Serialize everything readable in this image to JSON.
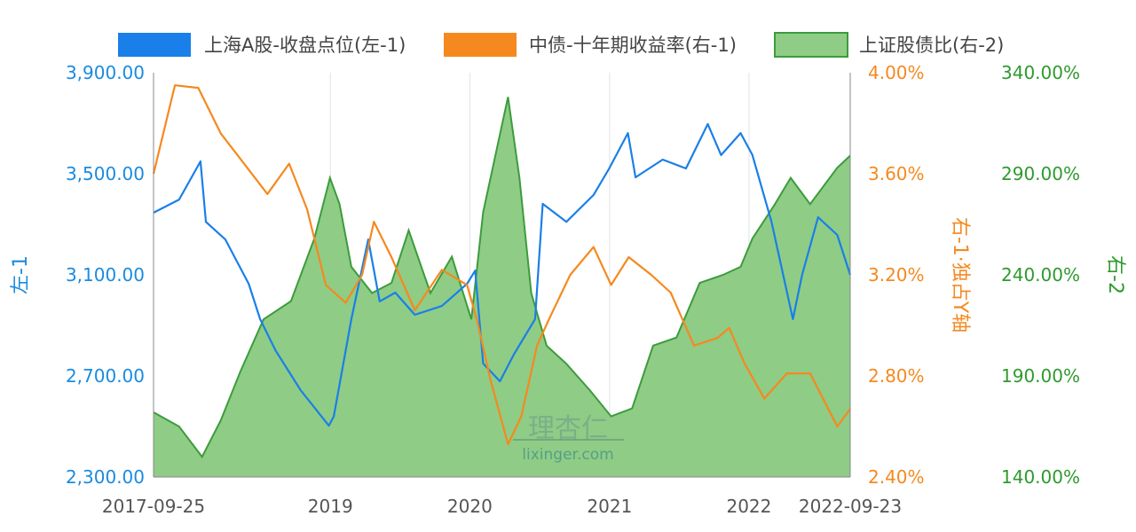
{
  "chart_data": {
    "type": "line",
    "legend": {
      "placement": "top"
    },
    "grid": {
      "vertical": true,
      "horizontal": false
    },
    "watermark": {
      "logo_text": "理杏仁",
      "site": "lixinger.com"
    },
    "x_axis": {
      "type": "date",
      "range": [
        "2017-09-25",
        "2022-09-23"
      ],
      "tick_labels": [
        {
          "date": "2017-09-25",
          "label": "2017-09-25"
        },
        {
          "date": "2019-01-01",
          "label": "2019"
        },
        {
          "date": "2020-01-01",
          "label": "2020"
        },
        {
          "date": "2021-01-01",
          "label": "2021"
        },
        {
          "date": "2022-01-01",
          "label": "2022"
        },
        {
          "date": "2022-09-23",
          "label": "2022-09-23"
        }
      ]
    },
    "axes": {
      "left1": {
        "label": "左-1",
        "range": [
          2300,
          3900
        ],
        "ticks": [
          "2,300.00",
          "2,700.00",
          "3,100.00",
          "3,500.00",
          "3,900.00"
        ],
        "color": "#1a8be0"
      },
      "right1": {
        "label": "右-1·独占Y轴",
        "range": [
          2.4,
          4.0
        ],
        "ticks": [
          "2.40%",
          "2.80%",
          "3.20%",
          "3.60%",
          "4.00%"
        ],
        "color": "#f5891f"
      },
      "right2": {
        "label": "右-2",
        "range": [
          140,
          340
        ],
        "ticks": [
          "140.00%",
          "190.00%",
          "240.00%",
          "290.00%",
          "340.00%"
        ],
        "color": "#2e9a2e"
      }
    },
    "series": [
      {
        "name": "上海A股-收盘点位(左-1)",
        "axis": "left1",
        "kind": "line",
        "color": "#1a7fe8",
        "points": [
          [
            "2017-09-25",
            3346
          ],
          [
            "2017-12-01",
            3398
          ],
          [
            "2018-01-26",
            3549
          ],
          [
            "2018-02-09",
            3310
          ],
          [
            "2018-04-01",
            3240
          ],
          [
            "2018-06-01",
            3065
          ],
          [
            "2018-07-01",
            2925
          ],
          [
            "2018-08-10",
            2802
          ],
          [
            "2018-10-15",
            2644
          ],
          [
            "2018-12-28",
            2503
          ],
          [
            "2019-01-10",
            2540
          ],
          [
            "2019-02-25",
            2925
          ],
          [
            "2019-04-10",
            3240
          ],
          [
            "2019-05-10",
            2995
          ],
          [
            "2019-06-20",
            3030
          ],
          [
            "2019-08-10",
            2942
          ],
          [
            "2019-10-20",
            2977
          ],
          [
            "2019-12-25",
            3065
          ],
          [
            "2020-01-15",
            3117
          ],
          [
            "2020-02-05",
            2749
          ],
          [
            "2020-03-20",
            2679
          ],
          [
            "2020-04-25",
            2784
          ],
          [
            "2020-06-20",
            2925
          ],
          [
            "2020-07-10",
            3381
          ],
          [
            "2020-09-10",
            3310
          ],
          [
            "2020-11-20",
            3416
          ],
          [
            "2020-12-31",
            3521
          ],
          [
            "2021-02-18",
            3661
          ],
          [
            "2021-03-10",
            3486
          ],
          [
            "2021-05-20",
            3556
          ],
          [
            "2021-07-20",
            3521
          ],
          [
            "2021-09-15",
            3697
          ],
          [
            "2021-10-20",
            3574
          ],
          [
            "2021-12-10",
            3661
          ],
          [
            "2022-01-10",
            3574
          ],
          [
            "2022-03-01",
            3310
          ],
          [
            "2022-04-26",
            2925
          ],
          [
            "2022-05-20",
            3100
          ],
          [
            "2022-07-01",
            3328
          ],
          [
            "2022-08-20",
            3258
          ],
          [
            "2022-09-23",
            3100
          ]
        ]
      },
      {
        "name": "中债-十年期收益率(右-1)",
        "axis": "right1",
        "kind": "line",
        "color": "#f5891f",
        "points": [
          [
            "2017-09-25",
            3.6
          ],
          [
            "2017-11-20",
            3.95
          ],
          [
            "2018-01-20",
            3.94
          ],
          [
            "2018-03-20",
            3.76
          ],
          [
            "2018-05-20",
            3.64
          ],
          [
            "2018-07-20",
            3.52
          ],
          [
            "2018-09-15",
            3.64
          ],
          [
            "2018-11-01",
            3.46
          ],
          [
            "2018-12-20",
            3.16
          ],
          [
            "2019-02-10",
            3.09
          ],
          [
            "2019-03-25",
            3.2
          ],
          [
            "2019-04-25",
            3.41
          ],
          [
            "2019-06-10",
            3.27
          ],
          [
            "2019-08-10",
            3.06
          ],
          [
            "2019-10-20",
            3.22
          ],
          [
            "2019-12-25",
            3.16
          ],
          [
            "2020-01-20",
            3.02
          ],
          [
            "2020-02-25",
            2.78
          ],
          [
            "2020-04-10",
            2.53
          ],
          [
            "2020-05-15",
            2.64
          ],
          [
            "2020-06-25",
            2.92
          ],
          [
            "2020-07-25",
            3.02
          ],
          [
            "2020-09-20",
            3.2
          ],
          [
            "2020-11-20",
            3.31
          ],
          [
            "2021-01-05",
            3.16
          ],
          [
            "2021-02-20",
            3.27
          ],
          [
            "2021-04-20",
            3.2
          ],
          [
            "2021-06-10",
            3.13
          ],
          [
            "2021-08-10",
            2.92
          ],
          [
            "2021-10-10",
            2.95
          ],
          [
            "2021-11-10",
            2.99
          ],
          [
            "2021-12-20",
            2.85
          ],
          [
            "2022-02-10",
            2.71
          ],
          [
            "2022-04-10",
            2.81
          ],
          [
            "2022-06-10",
            2.81
          ],
          [
            "2022-08-20",
            2.6
          ],
          [
            "2022-09-23",
            2.67
          ]
        ]
      },
      {
        "name": "上证股债比(右-2)",
        "axis": "right2",
        "kind": "area",
        "color": "#3c9c3c",
        "fill": "#8fcc86",
        "points": [
          [
            "2017-09-25",
            172
          ],
          [
            "2017-12-01",
            165
          ],
          [
            "2018-01-30",
            150
          ],
          [
            "2018-03-20",
            168
          ],
          [
            "2018-05-10",
            192
          ],
          [
            "2018-07-10",
            218
          ],
          [
            "2018-09-20",
            227
          ],
          [
            "2018-11-20",
            258
          ],
          [
            "2018-12-31",
            288
          ],
          [
            "2019-01-25",
            275
          ],
          [
            "2019-02-25",
            244
          ],
          [
            "2019-04-20",
            231
          ],
          [
            "2019-06-10",
            236
          ],
          [
            "2019-07-25",
            262
          ],
          [
            "2019-09-20",
            231
          ],
          [
            "2019-11-15",
            249
          ],
          [
            "2020-01-05",
            218
          ],
          [
            "2020-02-05",
            271
          ],
          [
            "2020-04-10",
            328
          ],
          [
            "2020-05-10",
            288
          ],
          [
            "2020-06-10",
            231
          ],
          [
            "2020-07-20",
            205
          ],
          [
            "2020-09-10",
            196
          ],
          [
            "2020-11-10",
            183
          ],
          [
            "2021-01-05",
            170
          ],
          [
            "2021-03-01",
            174
          ],
          [
            "2021-04-25",
            205
          ],
          [
            "2021-06-25",
            209
          ],
          [
            "2021-08-25",
            236
          ],
          [
            "2021-10-25",
            240
          ],
          [
            "2021-12-10",
            244
          ],
          [
            "2022-01-10",
            258
          ],
          [
            "2022-03-10",
            275
          ],
          [
            "2022-04-20",
            288
          ],
          [
            "2022-06-10",
            275
          ],
          [
            "2022-08-20",
            293
          ],
          [
            "2022-09-23",
            299
          ]
        ]
      }
    ]
  }
}
